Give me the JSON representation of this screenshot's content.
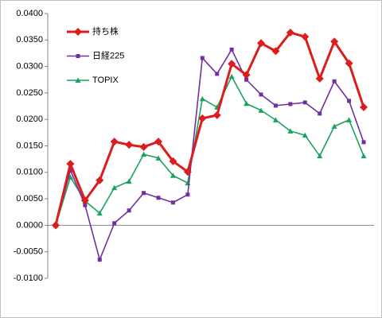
{
  "chart_data": {
    "type": "line",
    "categories": [
      null,
      null,
      null,
      null,
      null,
      null,
      null,
      null,
      null,
      null,
      null,
      null,
      null,
      null,
      null,
      null,
      null,
      null,
      null,
      null,
      null,
      null
    ],
    "series": [
      {
        "name": "持ち株",
        "color": "#dd1c1c",
        "marker": "diamond",
        "values": [
          0.0,
          0.0116,
          0.0047,
          0.0085,
          0.0158,
          0.0152,
          0.0148,
          0.0158,
          0.0121,
          0.0101,
          0.0202,
          0.0208,
          0.0305,
          0.0284,
          0.0344,
          0.0329,
          0.0364,
          0.0356,
          0.0277,
          0.0347,
          0.0306,
          0.0223
        ]
      },
      {
        "name": "日経225",
        "color": "#7030a0",
        "marker": "square",
        "values": [
          0.0,
          0.0104,
          0.0038,
          -0.0065,
          0.0004,
          0.0028,
          0.0061,
          0.0052,
          0.0043,
          0.0058,
          0.0316,
          0.0286,
          0.0332,
          0.0275,
          0.0247,
          0.0226,
          0.0229,
          0.0232,
          0.0211,
          0.0272,
          0.0235,
          0.0157
        ]
      },
      {
        "name": "TOPIX",
        "color": "#1aa35f",
        "marker": "triangle",
        "values": [
          0.0,
          0.0091,
          0.0046,
          0.0023,
          0.0071,
          0.0083,
          0.0134,
          0.0127,
          0.0094,
          0.008,
          0.0239,
          0.0223,
          0.0281,
          0.023,
          0.0217,
          0.0199,
          0.0178,
          0.017,
          0.0131,
          0.0187,
          0.0199,
          0.0131
        ]
      }
    ],
    "ylim": [
      -0.01,
      0.04
    ],
    "yticks": [
      {
        "value": -0.01,
        "label": "-0.0100"
      },
      {
        "value": -0.005,
        "label": "-0.0050"
      },
      {
        "value": 0,
        "label": "0.0000"
      },
      {
        "value": 0.005,
        "label": "0.0050"
      },
      {
        "value": 0.01,
        "label": "0.0100"
      },
      {
        "value": 0.015,
        "label": "0.0150"
      },
      {
        "value": 0.02,
        "label": "0.0200"
      },
      {
        "value": 0.025,
        "label": "0.0250"
      },
      {
        "value": 0.03,
        "label": "0.0300"
      },
      {
        "value": 0.035,
        "label": "0.0350"
      },
      {
        "value": 0.04,
        "label": "0.0400"
      }
    ],
    "grid": false,
    "legend": "upper left"
  }
}
